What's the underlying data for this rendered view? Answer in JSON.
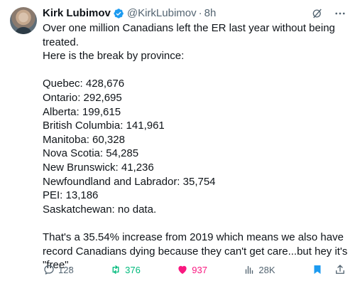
{
  "author": {
    "name": "Kirk Lubimov",
    "handle": "@KirkLubimov",
    "time": "8h"
  },
  "tweet": {
    "lines": [
      "Over one million Canadians left the ER last year without being",
      "treated.",
      "Here is the break by province:"
    ],
    "provinces": [
      "Quebec: 428,676",
      "Ontario: 292,695",
      "Alberta: 199,615",
      "British Columbia: 141,961",
      "Manitoba: 60,328",
      "Nova Scotia: 54,285",
      "New Brunswick: 41,236",
      "Newfoundland and Labrador: 35,754",
      "PEI: 13,186",
      "Saskatchewan: no data."
    ],
    "closing": [
      "That's a 35.54% increase from 2019 which means we also have",
      "record Canadians dying because they can't get care...but hey it's",
      "\"free\"."
    ]
  },
  "actions": {
    "replies": "128",
    "retweets": "376",
    "likes": "937",
    "views": "28K"
  },
  "colors": {
    "text": "#0f1419",
    "muted": "#536471",
    "verified": "#1d9bf0",
    "retweet": "#00ba7c",
    "like": "#f91880",
    "bookmark": "#1d9bf0"
  }
}
